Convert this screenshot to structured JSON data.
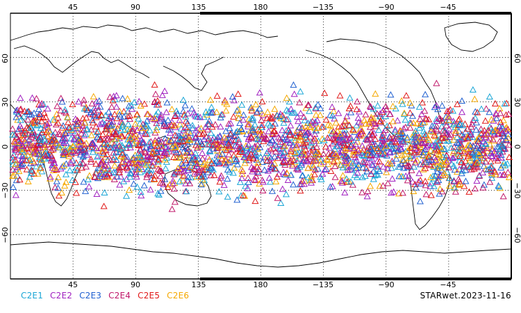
{
  "map": {
    "top_lon_labels": [
      "45",
      "90",
      "135",
      "180",
      "−135",
      "−90",
      "−45"
    ],
    "bottom_lon_labels": [
      "45",
      "90",
      "135",
      "180",
      "−135",
      "−90",
      "−45"
    ],
    "lat_labels_left": [
      "60",
      "30",
      "0",
      "−30",
      "−60"
    ],
    "lat_labels_right": [
      "60",
      "30",
      "0",
      "−30",
      "−60"
    ],
    "lon_range": [
      0,
      360
    ],
    "lat_range": [
      -90,
      90
    ],
    "grid": "dotted",
    "marker": "triangle-outline",
    "obs_lat_range": [
      -45,
      45
    ]
  },
  "legend": [
    {
      "label": "C2E1",
      "color": "#1aa6d6"
    },
    {
      "label": "C2E2",
      "color": "#a020c0"
    },
    {
      "label": "C2E3",
      "color": "#2060d0"
    },
    {
      "label": "C2E4",
      "color": "#c0186a"
    },
    {
      "label": "C2E5",
      "color": "#e01818"
    },
    {
      "label": "C2E6",
      "color": "#f5a800"
    }
  ],
  "stamp": "STARwet.2023-11-16"
}
